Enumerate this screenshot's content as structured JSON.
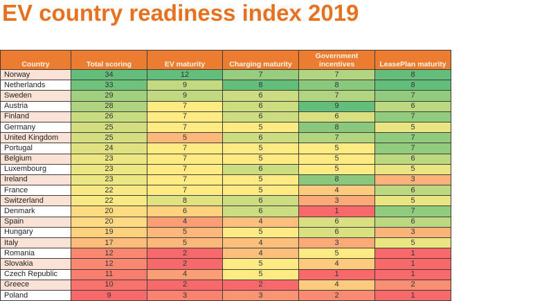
{
  "title": "EV country readiness index 2019",
  "table": {
    "columns": [
      "Country",
      "Total scoring",
      "EV maturity",
      "Charging maturity",
      "Government incentives",
      "LeasePlan maturity"
    ],
    "rows": [
      {
        "country": "Norway",
        "total": 34,
        "ev": 12,
        "charging": 7,
        "gov": 7,
        "leaseplan": 8
      },
      {
        "country": "Netherlands",
        "total": 33,
        "ev": 9,
        "charging": 8,
        "gov": 8,
        "leaseplan": 8
      },
      {
        "country": "Sweden",
        "total": 29,
        "ev": 9,
        "charging": 6,
        "gov": 7,
        "leaseplan": 7
      },
      {
        "country": "Austria",
        "total": 28,
        "ev": 7,
        "charging": 6,
        "gov": 9,
        "leaseplan": 6
      },
      {
        "country": "Finland",
        "total": 26,
        "ev": 7,
        "charging": 6,
        "gov": 6,
        "leaseplan": 7
      },
      {
        "country": "Germany",
        "total": 25,
        "ev": 7,
        "charging": 5,
        "gov": 8,
        "leaseplan": 5
      },
      {
        "country": "United Kingdom",
        "total": 25,
        "ev": 5,
        "charging": 6,
        "gov": 7,
        "leaseplan": 7
      },
      {
        "country": "Portugal",
        "total": 24,
        "ev": 7,
        "charging": 5,
        "gov": 5,
        "leaseplan": 7
      },
      {
        "country": "Belgium",
        "total": 23,
        "ev": 7,
        "charging": 5,
        "gov": 5,
        "leaseplan": 6
      },
      {
        "country": "Luxembourg",
        "total": 23,
        "ev": 7,
        "charging": 6,
        "gov": 5,
        "leaseplan": 5
      },
      {
        "country": "Ireland",
        "total": 23,
        "ev": 7,
        "charging": 5,
        "gov": 8,
        "leaseplan": 3
      },
      {
        "country": "France",
        "total": 22,
        "ev": 7,
        "charging": 5,
        "gov": 4,
        "leaseplan": 6
      },
      {
        "country": "Switzerland",
        "total": 22,
        "ev": 8,
        "charging": 6,
        "gov": 3,
        "leaseplan": 5
      },
      {
        "country": "Denmark",
        "total": 20,
        "ev": 6,
        "charging": 6,
        "gov": 1,
        "leaseplan": 7
      },
      {
        "country": "Spain",
        "total": 20,
        "ev": 4,
        "charging": 4,
        "gov": 6,
        "leaseplan": 6
      },
      {
        "country": "Hungary",
        "total": 19,
        "ev": 5,
        "charging": 5,
        "gov": 6,
        "leaseplan": 3
      },
      {
        "country": "Italy",
        "total": 17,
        "ev": 5,
        "charging": 4,
        "gov": 3,
        "leaseplan": 5
      },
      {
        "country": "Romania",
        "total": 12,
        "ev": 2,
        "charging": 4,
        "gov": 5,
        "leaseplan": 1
      },
      {
        "country": "Slovakia",
        "total": 12,
        "ev": 2,
        "charging": 5,
        "gov": 4,
        "leaseplan": 1
      },
      {
        "country": "Czech Republic",
        "total": 11,
        "ev": 4,
        "charging": 5,
        "gov": 1,
        "leaseplan": 1
      },
      {
        "country": "Greece",
        "total": 10,
        "ev": 2,
        "charging": 2,
        "gov": 4,
        "leaseplan": 2
      },
      {
        "country": "Poland",
        "total": 9,
        "ev": 3,
        "charging": 3,
        "gov": 2,
        "leaseplan": 1
      }
    ]
  },
  "colors": {
    "title": "#e8711f",
    "header_bg": "#ec7c30",
    "header_text": "#fff4e8",
    "country_odd_bg": "#fbe2d6",
    "country_even_bg": "#ffffff",
    "scale_low": "#f8696b",
    "scale_mid": "#ffeb84",
    "scale_high": "#63be7b"
  },
  "color_scale_ranges": {
    "total": [
      9,
      34
    ],
    "ev": [
      2,
      12
    ],
    "charging": [
      2,
      8
    ],
    "gov": [
      1,
      9
    ],
    "leaseplan": [
      1,
      8
    ]
  }
}
